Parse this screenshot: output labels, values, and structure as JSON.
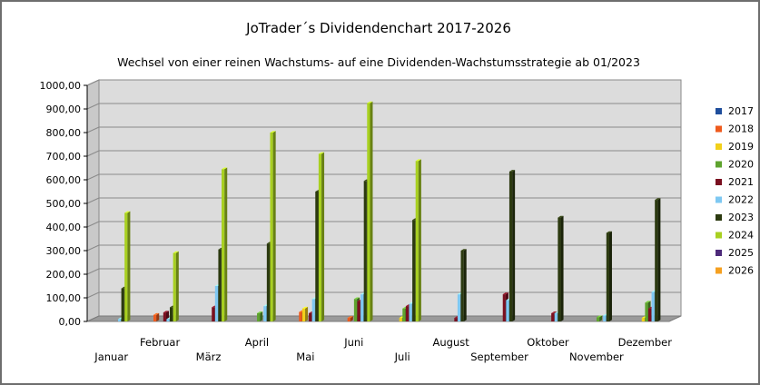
{
  "chart_data": {
    "type": "bar",
    "title": "JoTrader´s Dividendenchart 2017-2026",
    "subtitle": "Wechsel von einer reinen Wachstums- auf eine Dividenden-Wachstumsstrategie ab 01/2023",
    "categories": [
      "Januar",
      "Februar",
      "März",
      "April",
      "Mai",
      "Juni",
      "Juli",
      "August",
      "September",
      "Oktober",
      "November",
      "Dezember"
    ],
    "ylim": [
      0,
      1000
    ],
    "yticks": [
      "0,00",
      "100,00",
      "200,00",
      "300,00",
      "400,00",
      "500,00",
      "600,00",
      "700,00",
      "800,00",
      "900,00",
      "1000,00"
    ],
    "grid": true,
    "legend": "right",
    "series": [
      {
        "name": "2017",
        "color": "#1f4e9c",
        "values": [
          0,
          0,
          0,
          0,
          0,
          0,
          0,
          0,
          0,
          0,
          0,
          0
        ]
      },
      {
        "name": "2018",
        "color": "#ef5a1c",
        "values": [
          0,
          28,
          0,
          0,
          40,
          15,
          0,
          0,
          0,
          0,
          0,
          0
        ]
      },
      {
        "name": "2019",
        "color": "#f2d01a",
        "values": [
          0,
          0,
          0,
          0,
          55,
          0,
          15,
          0,
          0,
          0,
          0,
          15
        ]
      },
      {
        "name": "2020",
        "color": "#5ea32e",
        "values": [
          0,
          0,
          0,
          35,
          0,
          95,
          55,
          0,
          0,
          0,
          18,
          80
        ]
      },
      {
        "name": "2021",
        "color": "#7a1020",
        "values": [
          0,
          38,
          60,
          0,
          35,
          85,
          65,
          15,
          115,
          35,
          0,
          55
        ]
      },
      {
        "name": "2022",
        "color": "#7ec8f2",
        "values": [
          10,
          10,
          150,
          65,
          95,
          115,
          75,
          115,
          90,
          35,
          25,
          125
        ]
      },
      {
        "name": "2023",
        "color": "#2c3a10",
        "values": [
          140,
          60,
          305,
          330,
          550,
          595,
          430,
          300,
          635,
          440,
          375,
          515
        ]
      },
      {
        "name": "2024",
        "color": "#a8d020",
        "values": [
          460,
          290,
          645,
          800,
          710,
          925,
          680,
          0,
          0,
          0,
          0,
          0
        ]
      },
      {
        "name": "2025",
        "color": "#4d2a7a",
        "values": [
          0,
          0,
          0,
          0,
          0,
          0,
          0,
          0,
          0,
          0,
          0,
          0
        ]
      },
      {
        "name": "2026",
        "color": "#f5a020",
        "values": [
          0,
          0,
          0,
          0,
          0,
          0,
          0,
          0,
          0,
          0,
          0,
          0
        ]
      }
    ]
  }
}
